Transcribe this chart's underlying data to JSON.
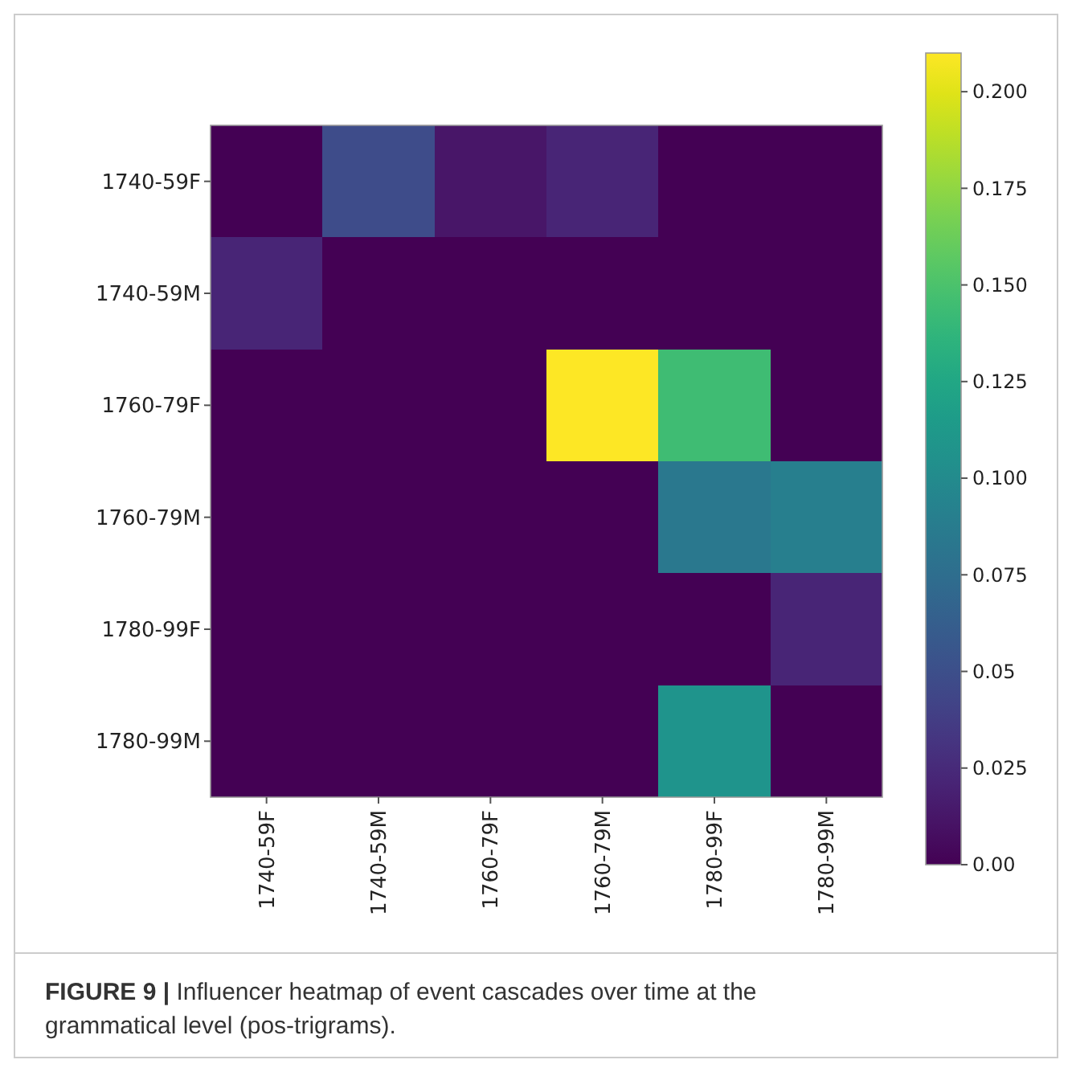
{
  "chart_data": {
    "type": "heatmap",
    "categories": [
      "1740-59F",
      "1740-59M",
      "1760-79F",
      "1760-79M",
      "1780-99F",
      "1780-99M"
    ],
    "y_categories": [
      "1740-59F",
      "1740-59M",
      "1760-79F",
      "1760-79M",
      "1780-99F",
      "1780-99M"
    ],
    "cells": [
      [
        0,
        0.048,
        0.012,
        0.022,
        0,
        0
      ],
      [
        0.022,
        0,
        0,
        0,
        0,
        0
      ],
      [
        0,
        0,
        0,
        0.21,
        0.145,
        0
      ],
      [
        0,
        0,
        0,
        0,
        0.084,
        0.09
      ],
      [
        0,
        0,
        0,
        0,
        0,
        0.022
      ],
      [
        0,
        0,
        0,
        0,
        0.109,
        0
      ]
    ],
    "clim": [
      0,
      0.21
    ],
    "cticks": [
      {
        "value": 0,
        "label": "0.00"
      },
      0.025,
      0.05,
      0.075,
      {
        "value": 0.1,
        "label": "0.100"
      },
      0.125,
      {
        "value": 0.15,
        "label": "0.150"
      },
      0.175,
      {
        "value": 0.2,
        "label": "0.200"
      }
    ],
    "annotations": [
      "FIGURE 9 | Influencer heatmap of event cascades over time at the grammatical level (pos-trigrams)."
    ]
  }
}
